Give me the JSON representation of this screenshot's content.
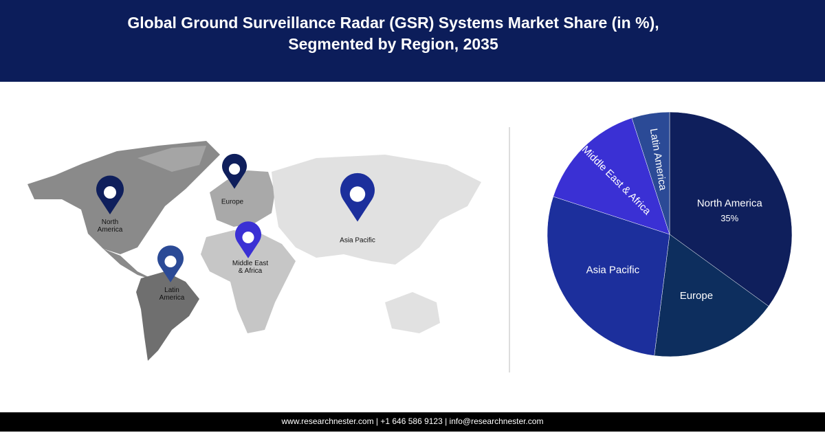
{
  "chart_data": {
    "type": "pie",
    "title": [
      "Global Ground Surveillance Radar (GSR) Systems Market Share (in %),",
      "Segmented by Region, 2035"
    ],
    "categories": [
      "North America",
      "Europe",
      "Asia Pacific",
      "Middle East & Africa",
      "Latin America"
    ],
    "values": [
      35,
      17,
      28,
      15,
      5
    ],
    "value_labels": [
      "35%",
      null,
      null,
      null,
      null
    ],
    "colors": [
      "#0f1f5c",
      "#0d2e5e",
      "#1c2f9c",
      "#3a30d4",
      "#2b4a96"
    ]
  },
  "map": {
    "pins": [
      {
        "label": "North America"
      },
      {
        "label": "Europe"
      },
      {
        "label": "Asia Pacific"
      },
      {
        "label": "Middle East & Africa"
      },
      {
        "label": "Latin America"
      }
    ]
  },
  "footer": "www.researchnester.com | +1 646 586 9123 | info@researchnester.com"
}
